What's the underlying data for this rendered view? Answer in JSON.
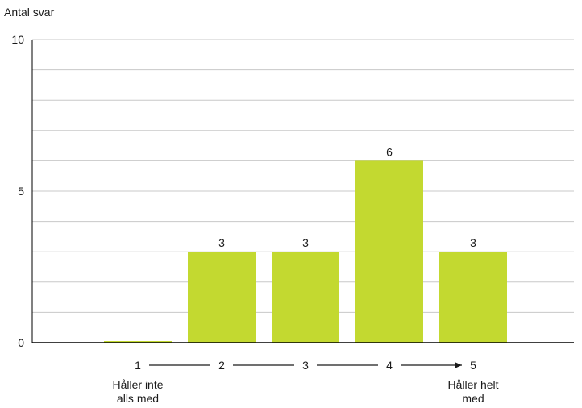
{
  "chart_data": {
    "type": "bar",
    "ylabel": "Antal svar",
    "ylim": [
      0,
      10
    ],
    "yticks": [
      0,
      5,
      10
    ],
    "minor_gridlines_every": 1,
    "grid": true,
    "categories": [
      "1",
      "2",
      "3",
      "4",
      "5"
    ],
    "values": [
      0,
      3,
      3,
      6,
      3
    ],
    "data_labels": [
      "",
      "3",
      "3",
      "6",
      "3"
    ],
    "scale_low_label": [
      "Håller inte",
      "alls med"
    ],
    "scale_high_label": [
      "Håller helt",
      "med"
    ],
    "bar_color": "#c3d930",
    "axis_color": "#000000",
    "grid_color": "#c8c8c8"
  }
}
